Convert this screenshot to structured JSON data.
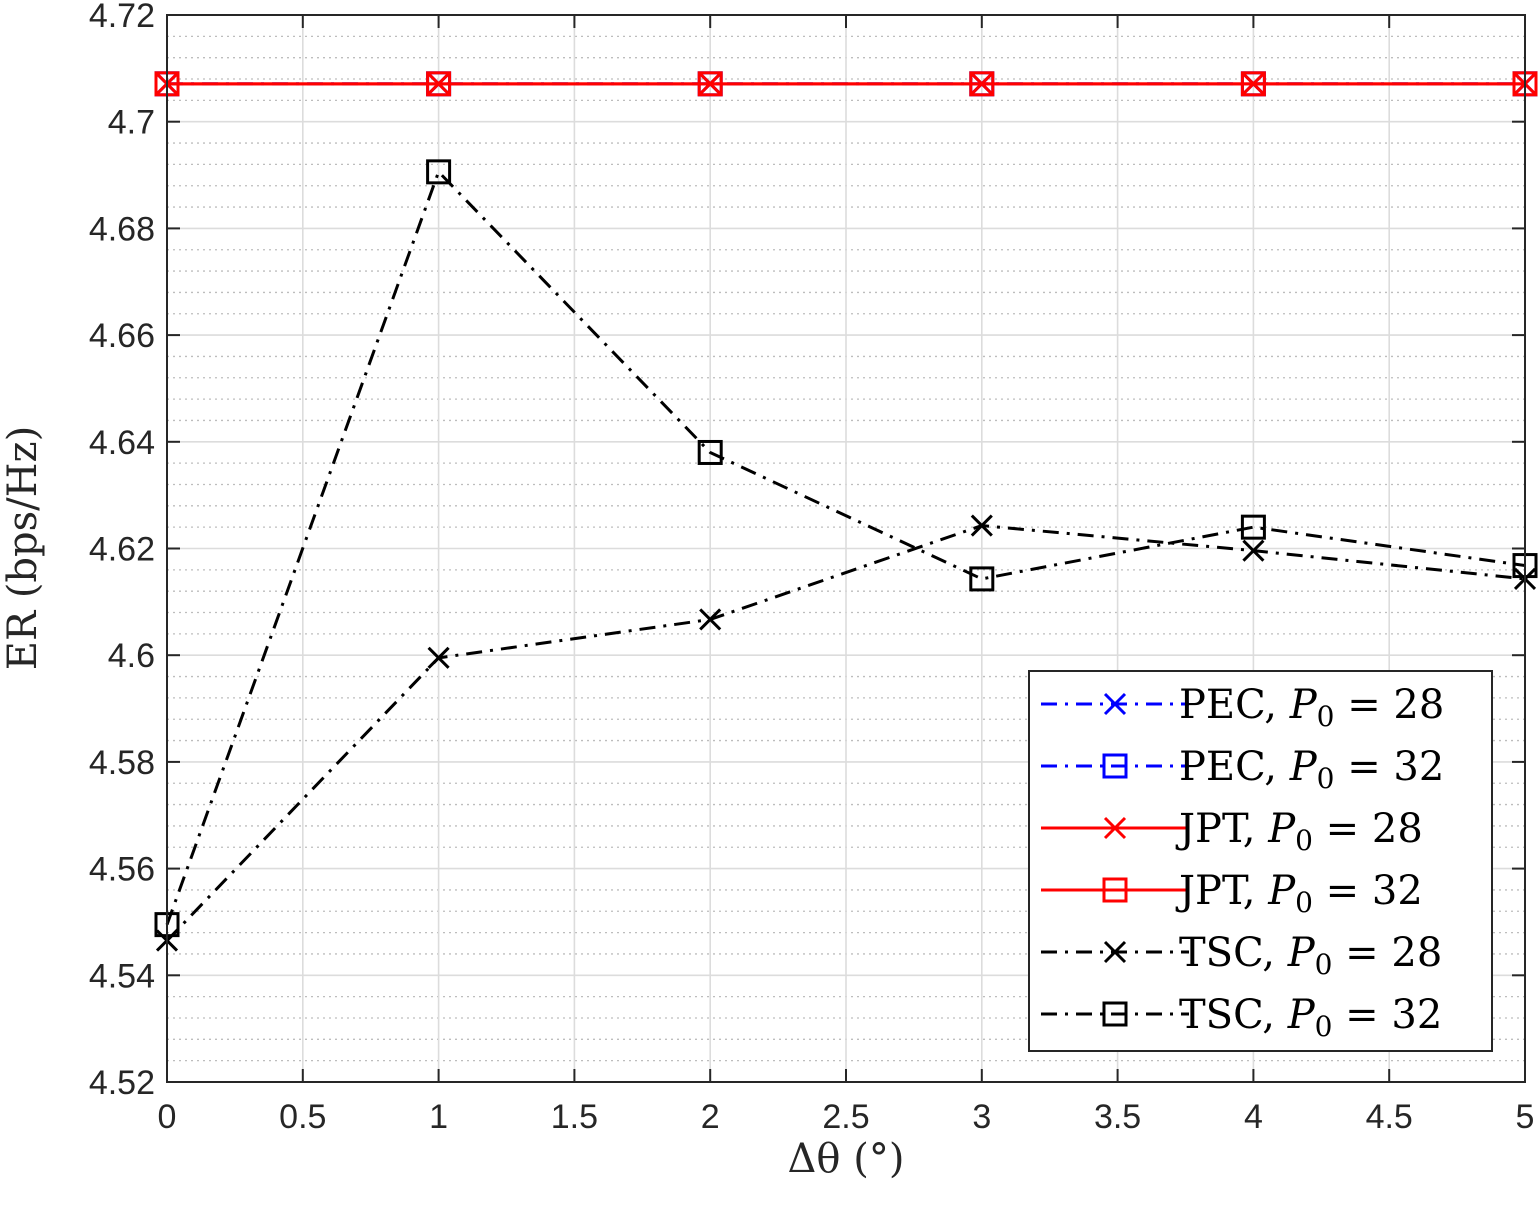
{
  "chart_data": {
    "type": "line",
    "xlabel": "Δθ (°)",
    "ylabel": "ER (bps/Hz)",
    "xlim": [
      0,
      5
    ],
    "ylim": [
      4.52,
      4.72
    ],
    "xticks": [
      "0",
      "0.5",
      "1",
      "1.5",
      "2",
      "2.5",
      "3",
      "3.5",
      "4",
      "4.5",
      "5"
    ],
    "yticks": [
      "4.52",
      "4.54",
      "4.56",
      "4.58",
      "4.6",
      "4.62",
      "4.64",
      "4.66",
      "4.68",
      "4.7",
      "4.72"
    ],
    "grid": true,
    "legend_position": "bottom-right",
    "x": [
      0,
      1,
      2,
      3,
      4,
      5
    ],
    "series": [
      {
        "name": "PEC, P0 = 28",
        "label_prefix": "PEC, ",
        "label_sym": "P",
        "label_sub": "0",
        "label_rhs": " = 28",
        "color": "#0000ff",
        "line": "dashdot",
        "marker": "x",
        "values": [
          4.7071,
          4.7071,
          4.7071,
          4.7071,
          4.7071,
          4.7071
        ]
      },
      {
        "name": "PEC, P0 = 32",
        "label_prefix": "PEC, ",
        "label_sym": "P",
        "label_sub": "0",
        "label_rhs": " = 32",
        "color": "#0000ff",
        "line": "dashdot",
        "marker": "square",
        "values": [
          4.7071,
          4.7071,
          4.7071,
          4.7071,
          4.7071,
          4.7071
        ]
      },
      {
        "name": "JPT, P0 = 28",
        "label_prefix": "JPT, ",
        "label_sym": "P",
        "label_sub": "0",
        "label_rhs": " = 28",
        "color": "#ff0000",
        "line": "solid",
        "marker": "x",
        "values": [
          4.7071,
          4.7071,
          4.7071,
          4.7071,
          4.7071,
          4.7071
        ]
      },
      {
        "name": "JPT, P0 = 32",
        "label_prefix": "JPT, ",
        "label_sym": "P",
        "label_sub": "0",
        "label_rhs": " = 32",
        "color": "#ff0000",
        "line": "solid",
        "marker": "square",
        "values": [
          4.7071,
          4.7071,
          4.7071,
          4.7071,
          4.7071,
          4.7071
        ]
      },
      {
        "name": "TSC, P0 = 28",
        "label_prefix": "TSC, ",
        "label_sym": "P",
        "label_sub": "0",
        "label_rhs": " = 28",
        "color": "#000000",
        "line": "dashdot",
        "marker": "x",
        "values": [
          4.5465,
          4.5995,
          4.6067,
          4.6243,
          4.6196,
          4.6143
        ]
      },
      {
        "name": "TSC, P0 = 32",
        "label_prefix": "TSC, ",
        "label_sym": "P",
        "label_sub": "0",
        "label_rhs": " = 32",
        "color": "#000000",
        "line": "dashdot",
        "marker": "square",
        "values": [
          4.5495,
          4.6906,
          4.638,
          4.6143,
          4.624,
          4.6168
        ]
      }
    ]
  }
}
